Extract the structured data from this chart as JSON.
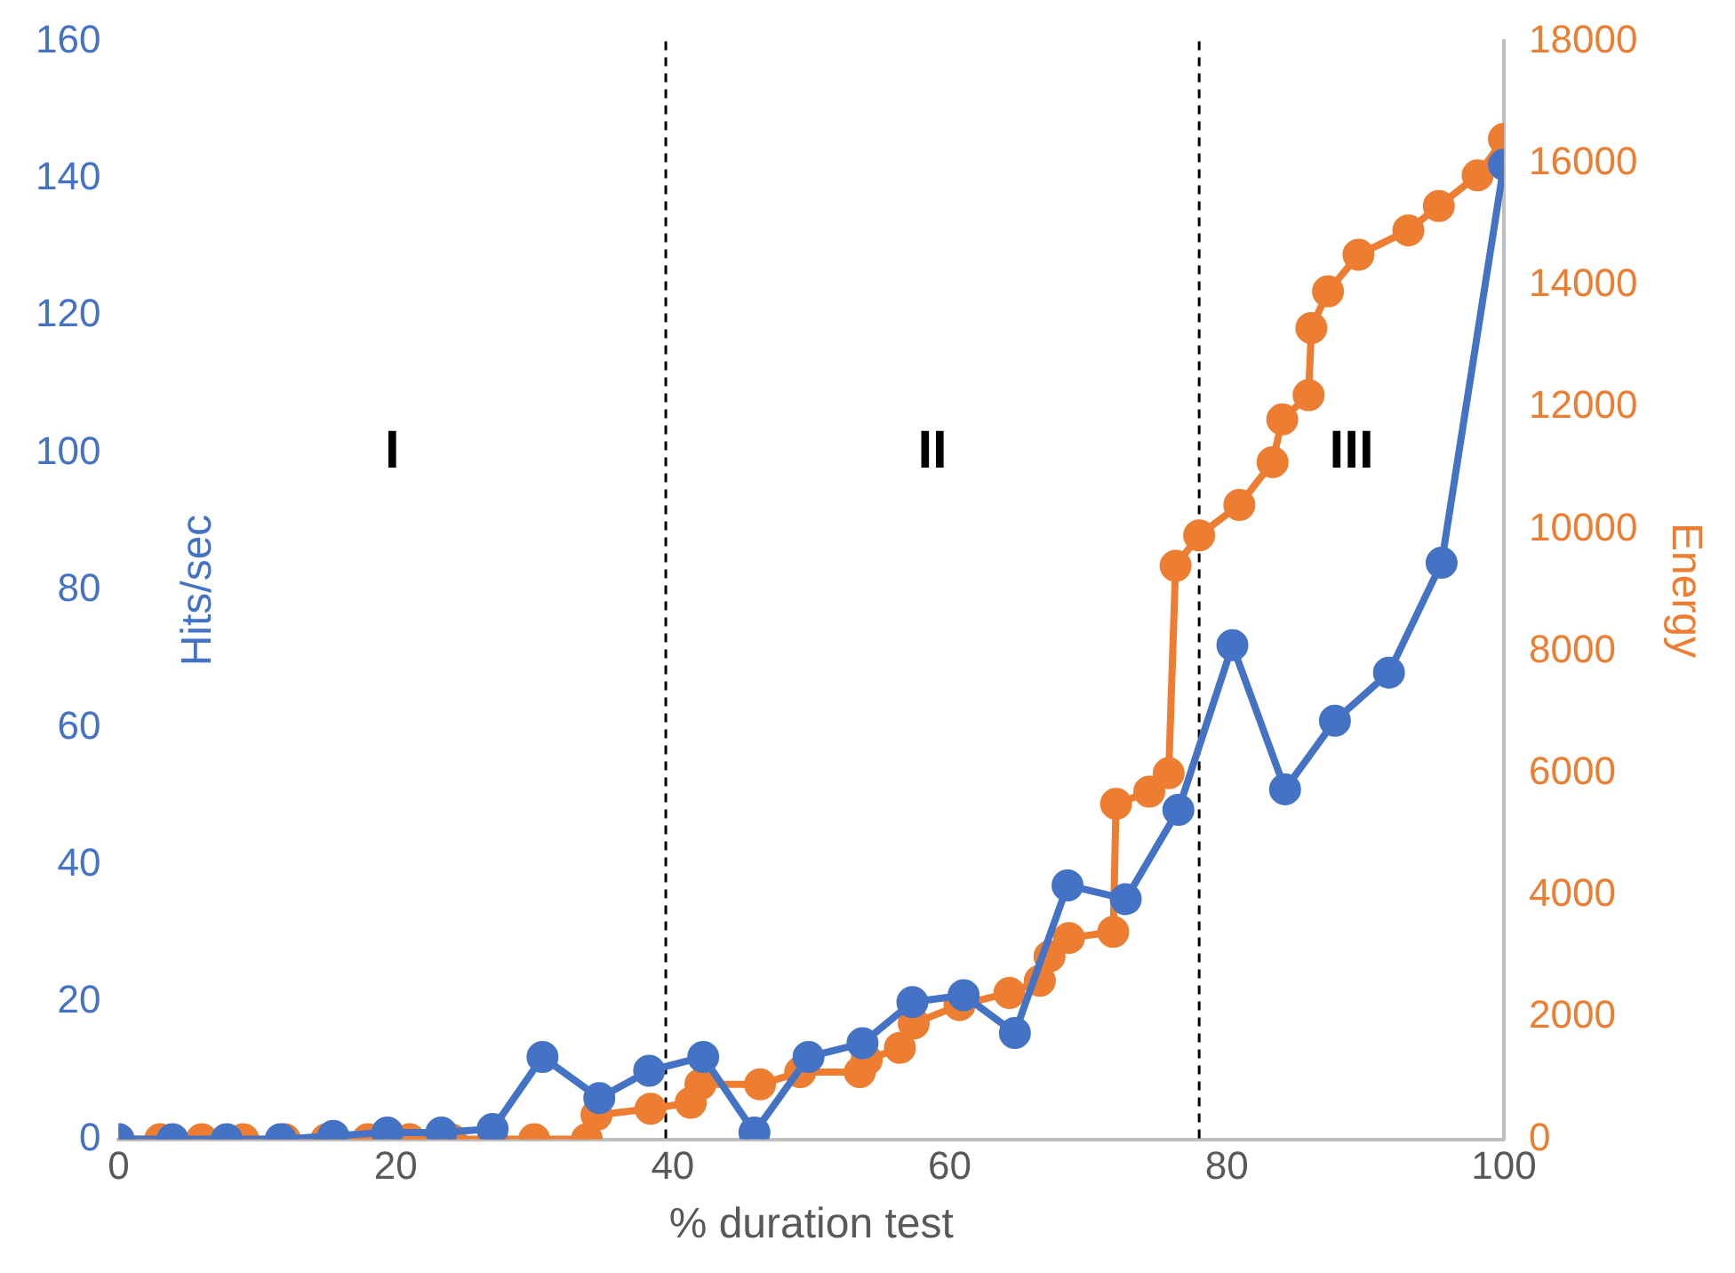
{
  "chart_data": {
    "type": "line",
    "xlabel": "% duration test",
    "ylabel": "Hits/sec",
    "y2label": "Energy",
    "xlim": [
      0,
      100
    ],
    "xticks": [
      0,
      20,
      40,
      60,
      80,
      100
    ],
    "ylim": [
      0,
      160
    ],
    "yticks": [
      0,
      20,
      40,
      60,
      80,
      100,
      120,
      140,
      160
    ],
    "y2lim": [
      0,
      18000
    ],
    "y2ticks": [
      0,
      2000,
      4000,
      6000,
      8000,
      10000,
      12000,
      14000,
      16000,
      18000
    ],
    "grid": false,
    "legend": false,
    "marker": "circle",
    "series": [
      {
        "color": "#4472c4",
        "x": [
          0,
          3.9,
          7.8,
          11.7,
          15.5,
          19.4,
          23.3,
          27,
          30.6,
          34.7,
          38.3,
          42.2,
          45.9,
          49.8,
          53.7,
          57.3,
          61,
          64.7,
          68.5,
          72.7,
          76.5,
          80.4,
          84.2,
          87.8,
          91.7,
          95.5,
          100
        ],
        "values": [
          0,
          0,
          0,
          0,
          0.5,
          1,
          1,
          1.5,
          12,
          6,
          10,
          12,
          1,
          12,
          14,
          20,
          21,
          15.5,
          37,
          35,
          48,
          72,
          51,
          61,
          68,
          84,
          142
        ]
      },
      {
        "color": "#ed7d31",
        "axis": "y2",
        "x": [
          0,
          3,
          6,
          9,
          12,
          15,
          18,
          21,
          24,
          27,
          30,
          33.8,
          34.5,
          38.4,
          41.3,
          42,
          46.3,
          49.2,
          53.5,
          54,
          56.4,
          57.4,
          60.7,
          64.3,
          66.5,
          67.2,
          68.6,
          71.8,
          72,
          74.4,
          75.8,
          76.3,
          78,
          80.9,
          83.3,
          84,
          85.9,
          86.1,
          87.3,
          89.5,
          93.1,
          95.3,
          98.1,
          100
        ],
        "values": [
          0,
          0,
          0,
          0,
          0,
          0,
          0,
          0,
          0,
          0,
          0,
          0,
          400,
          500,
          600,
          900,
          900,
          1100,
          1100,
          1300,
          1500,
          1900,
          2200,
          2400,
          2600,
          3000,
          3300,
          3400,
          5500,
          5700,
          6000,
          9400,
          9900,
          10400,
          11100,
          11800,
          12200,
          13300,
          13900,
          14500,
          14900,
          15300,
          15800,
          16400
        ]
      }
    ],
    "ref_lines": [
      {
        "axis": "x",
        "value": 39.5,
        "color": "#000000",
        "line_style": "dashed"
      },
      {
        "axis": "x",
        "value": 78,
        "color": "#000000",
        "line_style": "dashed"
      }
    ],
    "annotations": [
      "I",
      "II",
      "III"
    ]
  }
}
